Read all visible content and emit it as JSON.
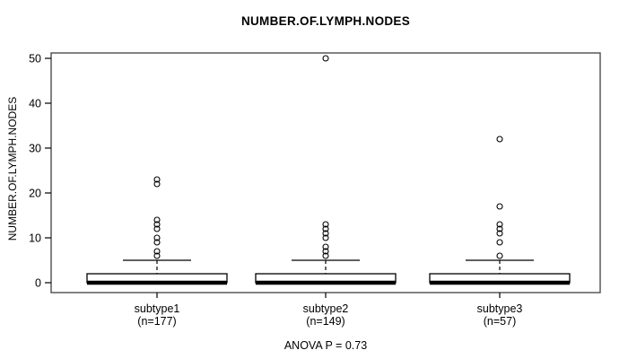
{
  "chart_data": {
    "type": "boxplot",
    "title": "NUMBER.OF.LYMPH.NODES",
    "ylabel": "NUMBER.OF.LYMPH.NODES",
    "xlabel": "",
    "annotation": "ANOVA P = 0.73",
    "ylim": [
      0,
      50
    ],
    "yticks": [
      0,
      10,
      20,
      30,
      40,
      50
    ],
    "grid": false,
    "legend": "none",
    "groups": [
      {
        "label": "subtype1",
        "count_label": "(n=177)",
        "n": 177,
        "whisker_low": 0,
        "q1": 0,
        "median": 0,
        "q3": 2,
        "whisker_high": 5,
        "outliers": [
          23,
          22,
          14,
          13,
          12,
          10,
          9,
          7,
          6
        ]
      },
      {
        "label": "subtype2",
        "count_label": "(n=149)",
        "n": 149,
        "whisker_low": 0,
        "q1": 0,
        "median": 0,
        "q3": 2,
        "whisker_high": 5,
        "outliers": [
          50,
          13,
          12,
          11,
          10,
          8,
          7,
          6
        ]
      },
      {
        "label": "subtype3",
        "count_label": "(n=57)",
        "n": 57,
        "whisker_low": 0,
        "q1": 0,
        "median": 0,
        "q3": 2,
        "whisker_high": 5,
        "outliers": [
          32,
          17,
          13,
          12,
          11,
          9,
          6
        ]
      }
    ],
    "colors": {
      "box_fill": "#ffffff",
      "stroke": "#000000",
      "plot_border": "#4d4d4d",
      "background": "#ffffff"
    }
  }
}
